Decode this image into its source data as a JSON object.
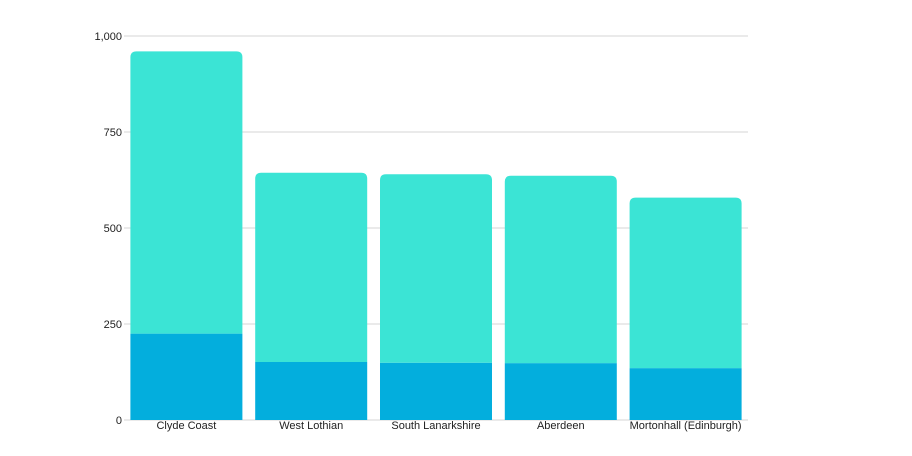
{
  "chart_data": {
    "type": "bar",
    "stacked": true,
    "categories": [
      "Clyde Coast",
      "West Lothian",
      "South Lanarkshire",
      "Aberdeen",
      "Mortonhall (Edinburgh)"
    ],
    "series": [
      {
        "values": [
          225,
          151,
          149,
          148,
          135
        ],
        "color": "#03aedd"
      },
      {
        "values": [
          735,
          493,
          491,
          488,
          444
        ],
        "color": "#3be4d5"
      }
    ],
    "ylim": [
      0,
      1000
    ],
    "yticks": [
      0,
      250,
      500,
      750,
      1000
    ],
    "ytick_labels": [
      "0",
      "250",
      "500",
      "750",
      "1,000"
    ],
    "grid": true,
    "legend": "none"
  }
}
